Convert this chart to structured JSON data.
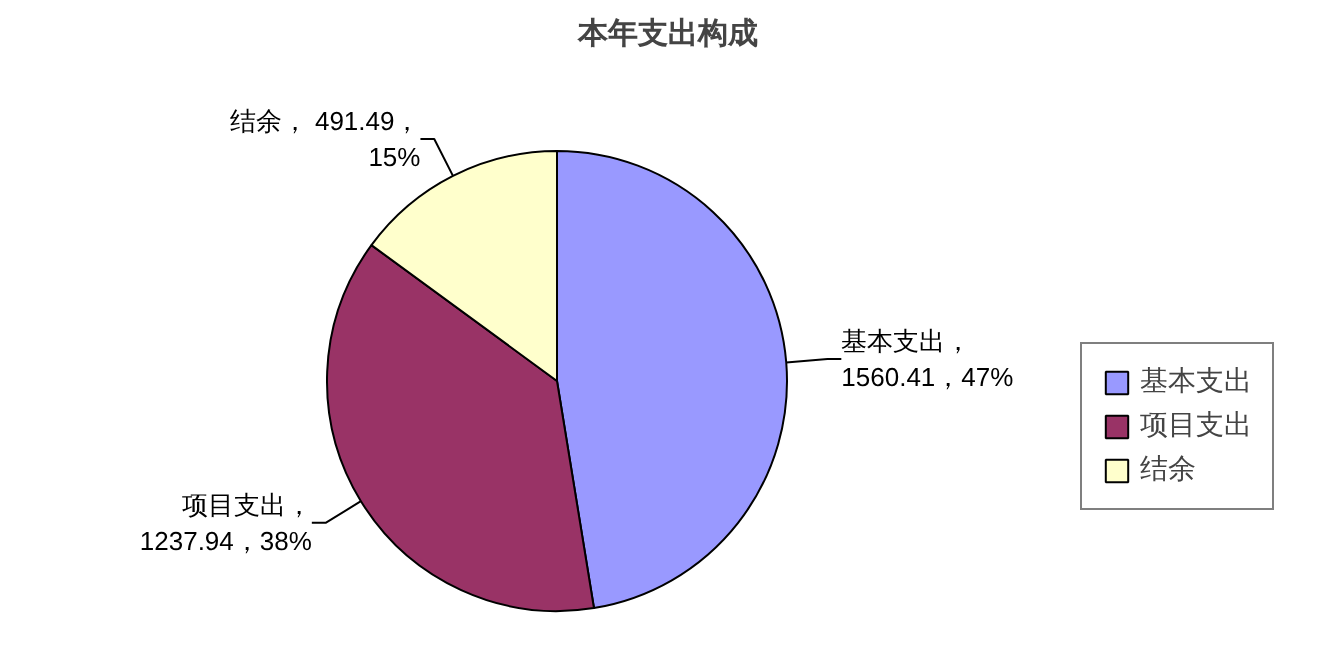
{
  "chart_data": {
    "type": "pie",
    "title": "本年支出构成",
    "categories": [
      "基本支出",
      "项目支出",
      "结余"
    ],
    "values": [
      1560.41,
      1237.94,
      491.49
    ],
    "colors": [
      "#9999ff",
      "#993366",
      "#ffffcc"
    ],
    "value_labels": [
      "基本支出，\n1560.41，47%",
      "项目支出，\n1237.94，38%",
      "结余， 491.49，\n15%"
    ],
    "legend": "right"
  }
}
